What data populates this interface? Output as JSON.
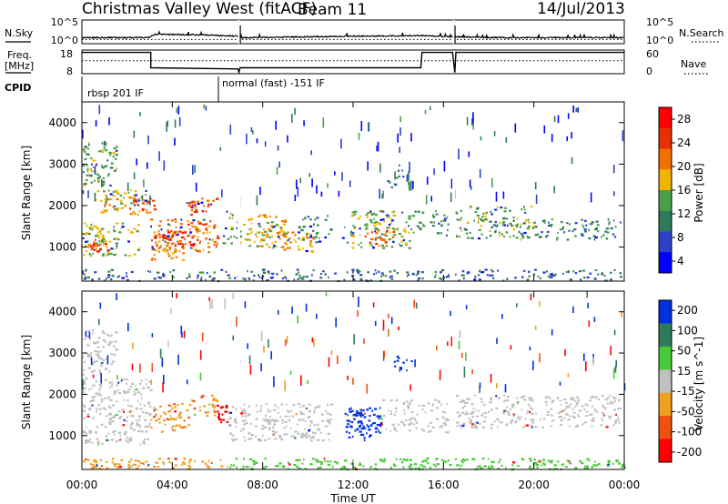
{
  "header": {
    "station": "Christmas Valley West (fitACF)",
    "beam": "Beam 11",
    "date": "14/Jul/2013"
  },
  "chart_data": [
    {
      "type": "line",
      "panel": "noise",
      "left_label": "N.Sky",
      "right_label": "N.Search",
      "left_ticks": [
        "10^5",
        "10^0"
      ],
      "right_ticks": [
        "10^5",
        "10^0"
      ],
      "right_legend_style": "dotted",
      "x_range_hours": [
        0,
        24
      ],
      "sky_level_exponent": [
        [
          0,
          0.9
        ],
        [
          3,
          0.9
        ],
        [
          3.2,
          1.6
        ],
        [
          5,
          1.5
        ],
        [
          6.9,
          1.2
        ],
        [
          7,
          0.9
        ],
        [
          9,
          1.0
        ],
        [
          12,
          1.2
        ],
        [
          15,
          1.3
        ],
        [
          16.4,
          1.1
        ],
        [
          18,
          0.9
        ],
        [
          24,
          0.9
        ]
      ],
      "search_level_exponent": [
        [
          0,
          0.5
        ],
        [
          24,
          0.5
        ]
      ],
      "gaps_hours": [
        6.95,
        16.45
      ]
    },
    {
      "type": "line",
      "panel": "frequency",
      "left_label": "Freq.",
      "left_unit": "[MHz]",
      "right_label": "Nave",
      "left_ticks": [
        "18",
        "8"
      ],
      "right_ticks": [
        "60",
        "0"
      ],
      "right_legend_style": "dotted",
      "freq_mhz": [
        [
          0,
          17
        ],
        [
          3.05,
          17
        ],
        [
          3.05,
          10.5
        ],
        [
          6.9,
          10
        ],
        [
          6.95,
          8.6
        ],
        [
          7.0,
          10.5
        ],
        [
          15,
          10.5
        ],
        [
          15.05,
          17
        ],
        [
          16.4,
          17
        ],
        [
          16.5,
          8.5
        ],
        [
          16.55,
          17
        ],
        [
          24,
          17
        ]
      ],
      "nave": [
        [
          0,
          33
        ],
        [
          24,
          33
        ]
      ]
    },
    {
      "type": "table",
      "panel": "cpid",
      "label": "CPID",
      "segments": [
        {
          "start_hour": 0,
          "text": "rbsp 201 IF"
        },
        {
          "start_hour": 6.0,
          "text": "normal (fast) -151 IF"
        }
      ]
    },
    {
      "type": "heatmap",
      "panel": "power",
      "ylabel": "Slant Range [km]",
      "ylim": [
        180,
        4500
      ],
      "yticks": [
        1000,
        2000,
        3000,
        4000
      ],
      "colorbar_label": "Power [dB]",
      "colorbar_ticks": [
        "4",
        "8",
        "12",
        "16",
        "20",
        "24",
        "28"
      ],
      "colorbar_colors": [
        "#0000ff",
        "#2f40c8",
        "#2e7a5c",
        "#48a048",
        "#f0b400",
        "#f07000",
        "#e83000",
        "#ff0000"
      ],
      "scatter_regions": [
        {
          "t": [
            0.0,
            1.5
          ],
          "r": [
            2500,
            3600
          ],
          "db": 14,
          "density": 0.55
        },
        {
          "t": [
            0.5,
            3.0
          ],
          "r": [
            1800,
            2400
          ],
          "db": 18,
          "density": 0.6
        },
        {
          "t": [
            0.0,
            2.5
          ],
          "r": [
            800,
            1600
          ],
          "db": 16,
          "density": 0.6
        },
        {
          "t": [
            0.2,
            1.2
          ],
          "r": [
            900,
            1200
          ],
          "db": 26,
          "density": 0.7
        },
        {
          "t": [
            2.0,
            3.2
          ],
          "r": [
            1900,
            2300
          ],
          "db": 24,
          "density": 0.6
        },
        {
          "t": [
            3.0,
            6.0
          ],
          "r": [
            900,
            1700
          ],
          "db": 22,
          "density": 0.7
        },
        {
          "t": [
            3.5,
            5.0
          ],
          "r": [
            1000,
            1400
          ],
          "db": 27,
          "density": 0.7
        },
        {
          "t": [
            4.5,
            6.0
          ],
          "r": [
            1800,
            2200
          ],
          "db": 25,
          "density": 0.7
        },
        {
          "t": [
            3.0,
            4.5
          ],
          "r": [
            700,
            1000
          ],
          "db": 20,
          "density": 0.5
        },
        {
          "t": [
            6.2,
            7.0
          ],
          "r": [
            1100,
            1900
          ],
          "db": 14,
          "density": 0.55
        },
        {
          "t": [
            7.0,
            9.0
          ],
          "r": [
            1000,
            1800
          ],
          "db": 18,
          "density": 0.6
        },
        {
          "t": [
            8.5,
            10.5
          ],
          "r": [
            900,
            1400
          ],
          "db": 20,
          "density": 0.55
        },
        {
          "t": [
            9.5,
            11.0
          ],
          "r": [
            1200,
            1800
          ],
          "db": 12,
          "density": 0.45
        },
        {
          "t": [
            11.5,
            14.5
          ],
          "r": [
            1000,
            1900
          ],
          "db": 16,
          "density": 0.55
        },
        {
          "t": [
            12.5,
            13.8
          ],
          "r": [
            1100,
            1500
          ],
          "db": 24,
          "density": 0.6
        },
        {
          "t": [
            13.5,
            14.2
          ],
          "r": [
            2400,
            3000
          ],
          "db": 8,
          "density": 0.35
        },
        {
          "t": [
            14.5,
            16.2
          ],
          "r": [
            1300,
            1900
          ],
          "db": 12,
          "density": 0.45
        },
        {
          "t": [
            16.5,
            20.0
          ],
          "r": [
            1200,
            2000
          ],
          "db": 14,
          "density": 0.5
        },
        {
          "t": [
            20.0,
            23.8
          ],
          "r": [
            1200,
            1700
          ],
          "db": 10,
          "density": 0.5
        },
        {
          "t": [
            0.0,
            24.0
          ],
          "r": [
            200,
            480
          ],
          "db": 9,
          "density": 0.45
        }
      ]
    },
    {
      "type": "heatmap",
      "panel": "velocity",
      "ylabel": "Slant Range [km]",
      "ylim": [
        180,
        4500
      ],
      "yticks": [
        1000,
        2000,
        3000,
        4000
      ],
      "xlabel": "Time UT",
      "xticks": [
        "00:00",
        "04:00",
        "08:00",
        "12:00",
        "16:00",
        "20:00",
        "00:00"
      ],
      "xtick_hours": [
        0,
        4,
        8,
        12,
        16,
        20,
        24
      ],
      "colorbar_label": "Velocity [m s^-1]",
      "colorbar_ticks": [
        "200",
        "100",
        "50",
        "15",
        "-15",
        "-50",
        "-100",
        "-200"
      ],
      "colorbar_colors": [
        "#0030e0",
        "#2e7a5c",
        "#49c838",
        "#c0c0c0",
        "#f0a020",
        "#f05010",
        "#ff0000"
      ],
      "scatter_regions": [
        {
          "t": [
            0.0,
            1.5
          ],
          "r": [
            2500,
            3600
          ],
          "v": 0,
          "density": 0.5
        },
        {
          "t": [
            0.0,
            3.0
          ],
          "r": [
            800,
            2400
          ],
          "v": 0,
          "density": 0.55
        },
        {
          "t": [
            3.0,
            4.8
          ],
          "r": [
            1100,
            1800
          ],
          "v": -40,
          "density": 0.6
        },
        {
          "t": [
            4.8,
            6.0
          ],
          "r": [
            1500,
            2000
          ],
          "v": -40,
          "density": 0.6
        },
        {
          "t": [
            5.9,
            6.4
          ],
          "r": [
            1300,
            1800
          ],
          "v": -250,
          "density": 0.85
        },
        {
          "t": [
            6.4,
            11.0
          ],
          "r": [
            900,
            1800
          ],
          "v": 0,
          "density": 0.6
        },
        {
          "t": [
            11.6,
            13.2
          ],
          "r": [
            900,
            1700
          ],
          "v": 250,
          "density": 0.85
        },
        {
          "t": [
            13.8,
            14.6
          ],
          "r": [
            2500,
            3000
          ],
          "v": 250,
          "density": 0.4
        },
        {
          "t": [
            13.2,
            16.2
          ],
          "r": [
            1100,
            1900
          ],
          "v": 0,
          "density": 0.45
        },
        {
          "t": [
            16.5,
            23.8
          ],
          "r": [
            1200,
            2000
          ],
          "v": 0,
          "density": 0.55
        },
        {
          "t": [
            0.0,
            6.5
          ],
          "r": [
            200,
            470
          ],
          "v": -40,
          "density": 0.55
        },
        {
          "t": [
            6.5,
            24.0
          ],
          "r": [
            200,
            470
          ],
          "v": 30,
          "density": 0.55
        }
      ]
    }
  ]
}
